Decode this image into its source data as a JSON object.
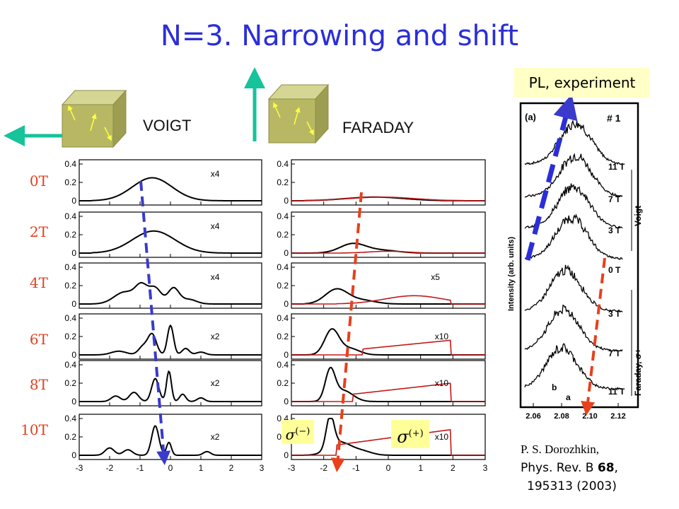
{
  "title": "N=3. Narrowing and shift",
  "geometry_labels": {
    "voigt": "VOIGT",
    "faraday": "FARADAY"
  },
  "field_labels": [
    "0T",
    "2T",
    "4T",
    "6T",
    "8T",
    "10T"
  ],
  "experiment_label": "PL, experiment",
  "reference": {
    "line1": "P. S. Dorozhkin,",
    "line2_prefix": "Phys. Rev. B ",
    "volume": "68",
    "line2_suffix": ",",
    "line3": "195313 (2003)"
  },
  "polarization_labels": {
    "minus": "(−)",
    "plus": "(+)",
    "sigma": "σ"
  },
  "colors": {
    "title": "#2b2ed8",
    "field_labels": "#e0401e",
    "teal_arrow": "#16c39a",
    "blue_dashed": "#3a3acc",
    "red_dashed": "#e8401c",
    "cube": "#b8b864",
    "label_bg": "#ffff99"
  },
  "chart_data": [
    {
      "type": "line",
      "panel": "Voigt",
      "xlim": [
        -3,
        3
      ],
      "ylim": [
        0,
        0.4
      ],
      "x_ticks": [
        "-3",
        "-2",
        "-1",
        "0",
        "1",
        "2",
        "3"
      ],
      "y_ticks": [
        "0",
        "0.2",
        "0.4"
      ],
      "subplots": [
        {
          "field": "0T",
          "multiplier": "x4"
        },
        {
          "field": "2T",
          "multiplier": "x4"
        },
        {
          "field": "4T",
          "multiplier": "x4"
        },
        {
          "field": "6T",
          "multiplier": "x2"
        },
        {
          "field": "8T",
          "multiplier": "x2"
        },
        {
          "field": "10T",
          "multiplier": "x2"
        }
      ]
    },
    {
      "type": "line",
      "panel": "Faraday",
      "xlim": [
        -3,
        3
      ],
      "ylim": [
        0,
        0.4
      ],
      "x_ticks": [
        "-3",
        "-2",
        "-1",
        "0",
        "1",
        "2",
        "3"
      ],
      "y_ticks": [
        "0",
        "0.2",
        "0.4"
      ],
      "subplots": [
        {
          "field": "0T",
          "multiplier": ""
        },
        {
          "field": "2T",
          "multiplier": ""
        },
        {
          "field": "4T",
          "multiplier": "x5"
        },
        {
          "field": "6T",
          "multiplier": "x10"
        },
        {
          "field": "8T",
          "multiplier": "x10"
        },
        {
          "field": "10T",
          "multiplier": "x10"
        }
      ]
    },
    {
      "type": "line",
      "panel": "PL experiment",
      "panel_label": "(a)",
      "sample_label": "# 1",
      "ylabel": "Intensity (arb. units)",
      "x_ticks": [
        "2.06",
        "2.08",
        "2.10",
        "2.12"
      ],
      "trace_labels": [
        "11 T",
        "7 T",
        "3 T",
        "0 T",
        "3 T",
        "7 T",
        "11 T"
      ],
      "group_labels": [
        "Voigt",
        "Faraday, σ+"
      ],
      "peak_labels": [
        "b",
        "a"
      ]
    }
  ]
}
